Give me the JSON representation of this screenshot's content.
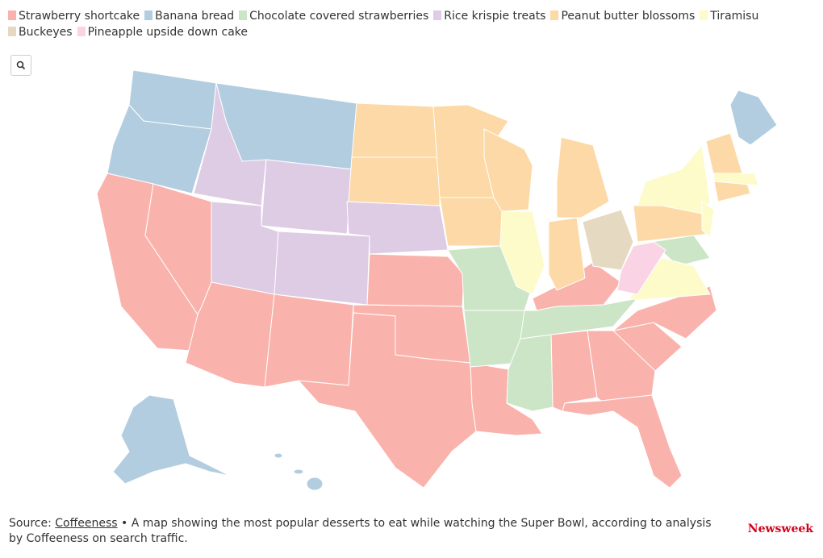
{
  "legend": [
    {
      "label": "Strawberry shortcake",
      "color": "#f9b3ac"
    },
    {
      "label": "Banana bread",
      "color": "#b3cde0"
    },
    {
      "label": "Chocolate covered strawberries",
      "color": "#cce5c6"
    },
    {
      "label": "Rice krispie treats",
      "color": "#ddcce4"
    },
    {
      "label": "Peanut butter blossoms",
      "color": "#fcd9a6"
    },
    {
      "label": "Tiramisu",
      "color": "#fdfbc9"
    },
    {
      "label": "Buckeyes",
      "color": "#e6d9c1"
    },
    {
      "label": "Pineapple upside down cake",
      "color": "#fad4e4"
    }
  ],
  "footer": {
    "source_label": "Source:",
    "source_link": "Coffeeness",
    "text": "• A map showing the most popular desserts to eat while watching the Super Bowl, according to analysis by Coffeeness on search traffic.",
    "brand": "Newsweek"
  }
}
